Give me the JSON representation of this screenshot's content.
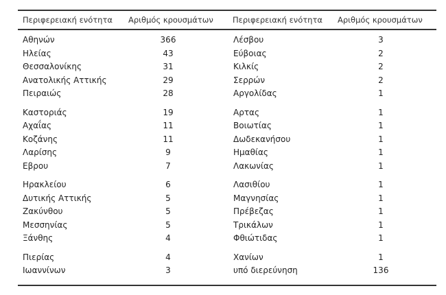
{
  "headers": {
    "left": {
      "region": "Περιφερειακή ενότητα",
      "cases": "Αριθμός κρουσμάτων"
    },
    "right": {
      "region": "Περιφερειακή ενότητα",
      "cases": "Αριθμός κρουσμάτων"
    }
  },
  "left_rows": [
    {
      "region": "Αθηνών",
      "cases": "366"
    },
    {
      "region": "Ηλείας",
      "cases": "43"
    },
    {
      "region": "Θεσσαλονίκης",
      "cases": "31"
    },
    {
      "region": "Ανατολικής Αττικής",
      "cases": "29"
    },
    {
      "region": "Πειραιώς",
      "cases": "28"
    },
    {
      "region": "Καστοριάς",
      "cases": "19"
    },
    {
      "region": "Αχαΐας",
      "cases": "11"
    },
    {
      "region": "Κοζάνης",
      "cases": "11"
    },
    {
      "region": "Λαρίσης",
      "cases": "9"
    },
    {
      "region": "Εβρου",
      "cases": "7"
    },
    {
      "region": "Ηρακλείου",
      "cases": "6"
    },
    {
      "region": "Δυτικής Αττικής",
      "cases": "5"
    },
    {
      "region": "Ζακύνθου",
      "cases": "5"
    },
    {
      "region": "Μεσσηνίας",
      "cases": "5"
    },
    {
      "region": "Ξάνθης",
      "cases": "4"
    },
    {
      "region": "Πιερίας",
      "cases": "4"
    },
    {
      "region": "Ιωαννίνων",
      "cases": "3"
    }
  ],
  "right_rows": [
    {
      "region": "Λέσβου",
      "cases": "3"
    },
    {
      "region": "Εύβοιας",
      "cases": "2"
    },
    {
      "region": "Κιλκίς",
      "cases": "2"
    },
    {
      "region": "Σερρών",
      "cases": "2"
    },
    {
      "region": "Αργολίδας",
      "cases": "1"
    },
    {
      "region": "Αρτας",
      "cases": "1"
    },
    {
      "region": "Βοιωτίας",
      "cases": "1"
    },
    {
      "region": "Δωδεκανήσου",
      "cases": "1"
    },
    {
      "region": "Ημαθίας",
      "cases": "1"
    },
    {
      "region": "Λακωνίας",
      "cases": "1"
    },
    {
      "region": "Λασιθίου",
      "cases": "1"
    },
    {
      "region": "Μαγνησίας",
      "cases": "1"
    },
    {
      "region": "Πρέβεζας",
      "cases": "1"
    },
    {
      "region": "Τρικάλων",
      "cases": "1"
    },
    {
      "region": "Φθιώτιδας",
      "cases": "1"
    },
    {
      "region": "Χανίων",
      "cases": "1"
    },
    {
      "region": "υπό διερεύνηση",
      "cases": "136"
    }
  ]
}
